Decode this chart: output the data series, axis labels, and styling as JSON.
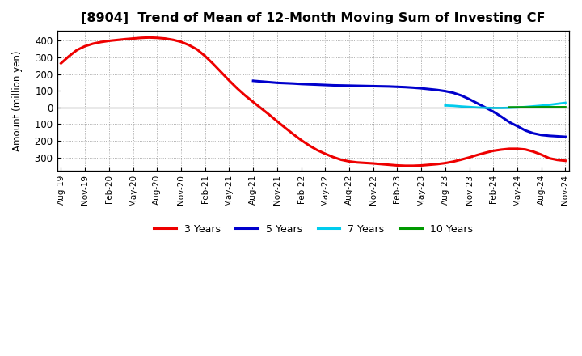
{
  "title": "[8904]  Trend of Mean of 12-Month Moving Sum of Investing CF",
  "ylabel": "Amount (million yen)",
  "background_color": "#ffffff",
  "plot_background": "#ffffff",
  "grid_color": "#999999",
  "ylim": [
    -380,
    460
  ],
  "yticks": [
    -300,
    -200,
    -100,
    0,
    100,
    200,
    300,
    400
  ],
  "series": {
    "3years": {
      "color": "#ee0000",
      "linewidth": 2.2,
      "label": "3 Years",
      "x": [
        0,
        1,
        2,
        3,
        4,
        5,
        6,
        7,
        8,
        9,
        10,
        11,
        12,
        13,
        14,
        15,
        16,
        17,
        18,
        19,
        20,
        21,
        22,
        23,
        24,
        25,
        26,
        27,
        28,
        29,
        30,
        31,
        32,
        33,
        34,
        35,
        36,
        37,
        38,
        39,
        40,
        41,
        42,
        43,
        44,
        45,
        46,
        47,
        48,
        49,
        50,
        51,
        52,
        53,
        54,
        55,
        56,
        57,
        58,
        59,
        60,
        61,
        62,
        63
      ],
      "y": [
        265,
        308,
        345,
        368,
        383,
        393,
        400,
        405,
        410,
        414,
        418,
        420,
        418,
        414,
        406,
        394,
        374,
        348,
        308,
        262,
        212,
        162,
        115,
        72,
        33,
        -5,
        -43,
        -83,
        -122,
        -160,
        -196,
        -228,
        -256,
        -278,
        -298,
        -314,
        -324,
        -330,
        -333,
        -336,
        -340,
        -344,
        -348,
        -350,
        -350,
        -348,
        -344,
        -340,
        -334,
        -325,
        -313,
        -300,
        -285,
        -272,
        -260,
        -253,
        -248,
        -248,
        -252,
        -265,
        -283,
        -305,
        -315,
        -320
      ]
    },
    "5years": {
      "color": "#0000cc",
      "linewidth": 2.2,
      "label": "5 Years",
      "x": [
        24,
        25,
        26,
        27,
        28,
        29,
        30,
        31,
        32,
        33,
        34,
        35,
        36,
        37,
        38,
        39,
        40,
        41,
        42,
        43,
        44,
        45,
        46,
        47,
        48,
        49,
        50,
        51,
        52,
        53,
        54,
        55,
        56,
        57,
        58,
        59,
        60,
        61,
        62,
        63
      ],
      "y": [
        160,
        156,
        152,
        148,
        146,
        144,
        141,
        139,
        137,
        135,
        133,
        132,
        131,
        130,
        129,
        128,
        127,
        126,
        124,
        122,
        119,
        115,
        110,
        105,
        98,
        88,
        72,
        50,
        25,
        0,
        -25,
        -55,
        -88,
        -112,
        -138,
        -155,
        -165,
        -170,
        -173,
        -176
      ]
    },
    "7years": {
      "color": "#00ccee",
      "linewidth": 2.0,
      "label": "7 Years",
      "x": [
        48,
        49,
        50,
        51,
        52,
        53,
        54,
        55,
        56,
        57,
        58,
        59,
        60,
        61,
        62,
        63
      ],
      "y": [
        12,
        10,
        6,
        3,
        0,
        -2,
        -3,
        -3,
        -2,
        0,
        3,
        7,
        11,
        16,
        22,
        28
      ]
    },
    "10years": {
      "color": "#009900",
      "linewidth": 2.0,
      "label": "10 Years",
      "x": [
        56,
        57,
        58,
        59,
        60,
        61,
        62,
        63
      ],
      "y": [
        1,
        1,
        1,
        1,
        2,
        2,
        2,
        2
      ]
    }
  },
  "xtick_labels": [
    "Aug-19",
    "Nov-19",
    "Feb-20",
    "May-20",
    "Aug-20",
    "Nov-20",
    "Feb-21",
    "May-21",
    "Aug-21",
    "Nov-21",
    "Feb-22",
    "May-22",
    "Aug-22",
    "Nov-22",
    "Feb-23",
    "May-23",
    "Aug-23",
    "Nov-23",
    "Feb-24",
    "May-24",
    "Aug-24",
    "Nov-24"
  ],
  "xtick_positions": [
    0,
    3,
    6,
    9,
    12,
    15,
    18,
    21,
    24,
    27,
    30,
    33,
    36,
    39,
    42,
    45,
    48,
    51,
    54,
    57,
    60,
    63
  ],
  "legend_items": [
    "3 Years",
    "5 Years",
    "7 Years",
    "10 Years"
  ],
  "legend_colors": [
    "#ee0000",
    "#0000cc",
    "#00ccee",
    "#009900"
  ]
}
